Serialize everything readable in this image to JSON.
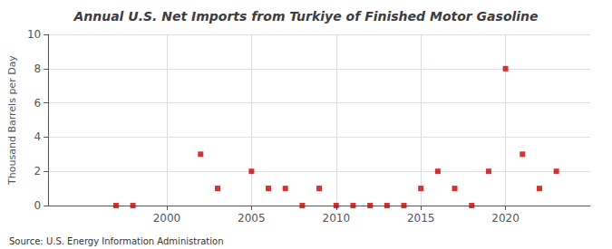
{
  "chart_data": {
    "type": "scatter",
    "title": "Annual U.S. Net Imports from Turkiye of Finished Motor Gasoline",
    "ylabel": "Thousand Barrels per Day",
    "annotations": [
      "Source: U.S. Energy Information Administration"
    ],
    "x": [
      1997,
      1998,
      2002,
      2003,
      2005,
      2006,
      2007,
      2008,
      2009,
      2010,
      2011,
      2012,
      2013,
      2014,
      2015,
      2016,
      2017,
      2018,
      2019,
      2020,
      2021,
      2022,
      2023
    ],
    "values": [
      0,
      0,
      3,
      1,
      2,
      1,
      1,
      0,
      1,
      0,
      0,
      0,
      0,
      0,
      1,
      2,
      1,
      0,
      2,
      8,
      3,
      1,
      2
    ],
    "color": "#cc0000",
    "marker": "square",
    "xlim": [
      1993,
      2025
    ],
    "xticks": [
      2000,
      2005,
      2010,
      2015,
      2020
    ],
    "ylim": [
      0,
      10
    ],
    "yticks": [
      0,
      2,
      4,
      6,
      8,
      10
    ],
    "grid": true
  }
}
